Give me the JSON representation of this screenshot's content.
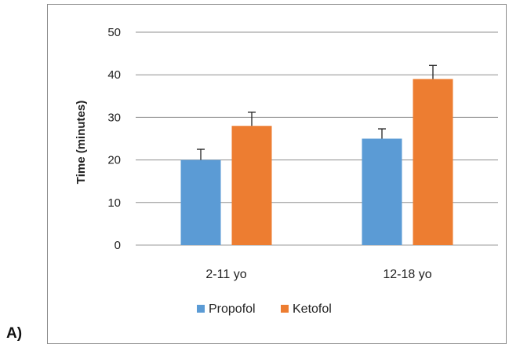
{
  "panel_label": "A)",
  "chart_data": {
    "type": "bar",
    "categories": [
      "2-11 yo",
      "12-18 yo"
    ],
    "series": [
      {
        "name": "Propofol",
        "values": [
          20,
          25
        ],
        "errors": [
          2.5,
          2.3
        ],
        "color": "#5b9bd5"
      },
      {
        "name": "Ketofol",
        "values": [
          28,
          39
        ],
        "errors": [
          3.2,
          3.2
        ],
        "color": "#ed7d31"
      }
    ],
    "title": "",
    "xlabel": "",
    "ylabel": "Time (minutes)",
    "ylim": [
      0,
      50
    ],
    "yticks": [
      0,
      10,
      20,
      30,
      40,
      50
    ],
    "grid": true,
    "legend": "bottom"
  }
}
